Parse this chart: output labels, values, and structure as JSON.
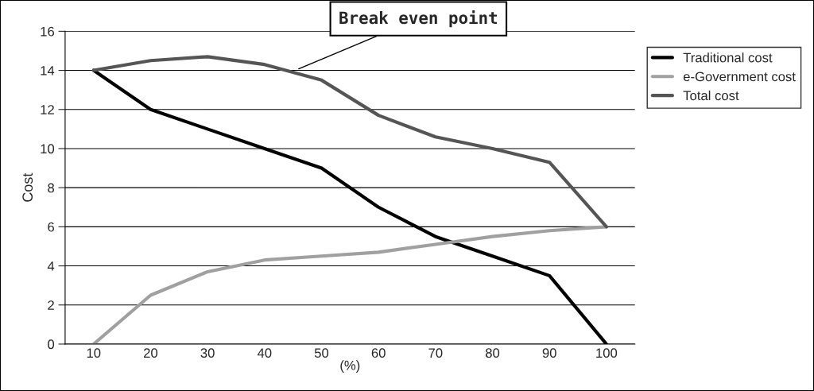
{
  "chart_data": {
    "type": "line",
    "ylabel": "Cost",
    "xlabel": "(%)",
    "categories": [
      "10",
      "20",
      "30",
      "40",
      "50",
      "60",
      "70",
      "80",
      "90",
      "100"
    ],
    "series": [
      {
        "name": "Traditional cost",
        "color": "#000000",
        "values": [
          14,
          12,
          11,
          10,
          9,
          7,
          5.5,
          4.5,
          3.5,
          0
        ]
      },
      {
        "name": "e-Government cost",
        "color": "#a0a0a0",
        "values": [
          0,
          2.5,
          3.7,
          4.3,
          4.5,
          4.7,
          5.1,
          5.5,
          5.8,
          6
        ]
      },
      {
        "name": "Total cost",
        "color": "#555555",
        "values": [
          14,
          14.5,
          14.7,
          14.3,
          13.5,
          11.7,
          10.6,
          10,
          9.3,
          6
        ]
      }
    ],
    "ylim": [
      0,
      16
    ],
    "yticks": [
      0,
      2,
      4,
      6,
      8,
      10,
      12,
      14,
      16
    ],
    "grid": "y",
    "legend": "top right",
    "marker": "none",
    "line_style": "solid",
    "annotations": [
      "Break even point"
    ]
  }
}
